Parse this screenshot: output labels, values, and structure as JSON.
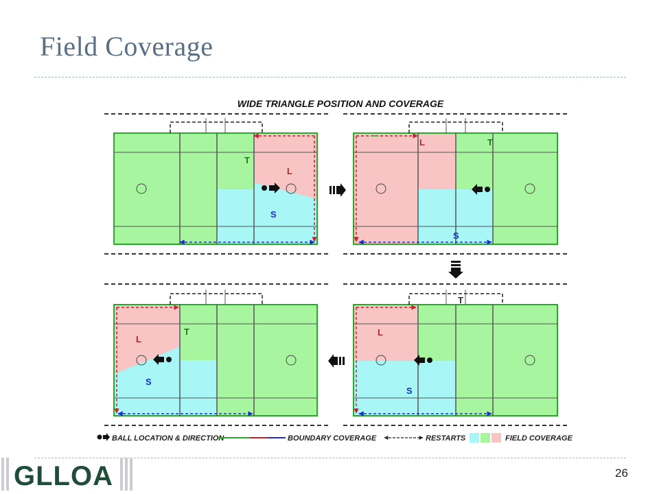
{
  "slide": {
    "title": "Field Coverage",
    "page_number": "26",
    "logo_text": "GLLOA"
  },
  "diagram": {
    "title": "WIDE TRIANGLE POSITION AND COVERAGE",
    "labels": {
      "trail": "T",
      "lead": "L",
      "single": "S"
    },
    "legend": {
      "ball": "BALL LOCATION & DIRECTION",
      "boundary": "BOUNDARY COVERAGE",
      "restarts": "RESTARTS",
      "field": "FIELD COVERAGE"
    },
    "colors": {
      "green": "#a8f5a0",
      "pink": "#f9c4c4",
      "cyan": "#a8f6f6",
      "border_green": "#2aa82a",
      "border_red": "#c8202a",
      "border_blue": "#1a2ec8",
      "line": "#555555"
    },
    "icons": [
      "ball-direction-icon",
      "flow-arrow-icon",
      "center-circle-icon"
    ]
  }
}
